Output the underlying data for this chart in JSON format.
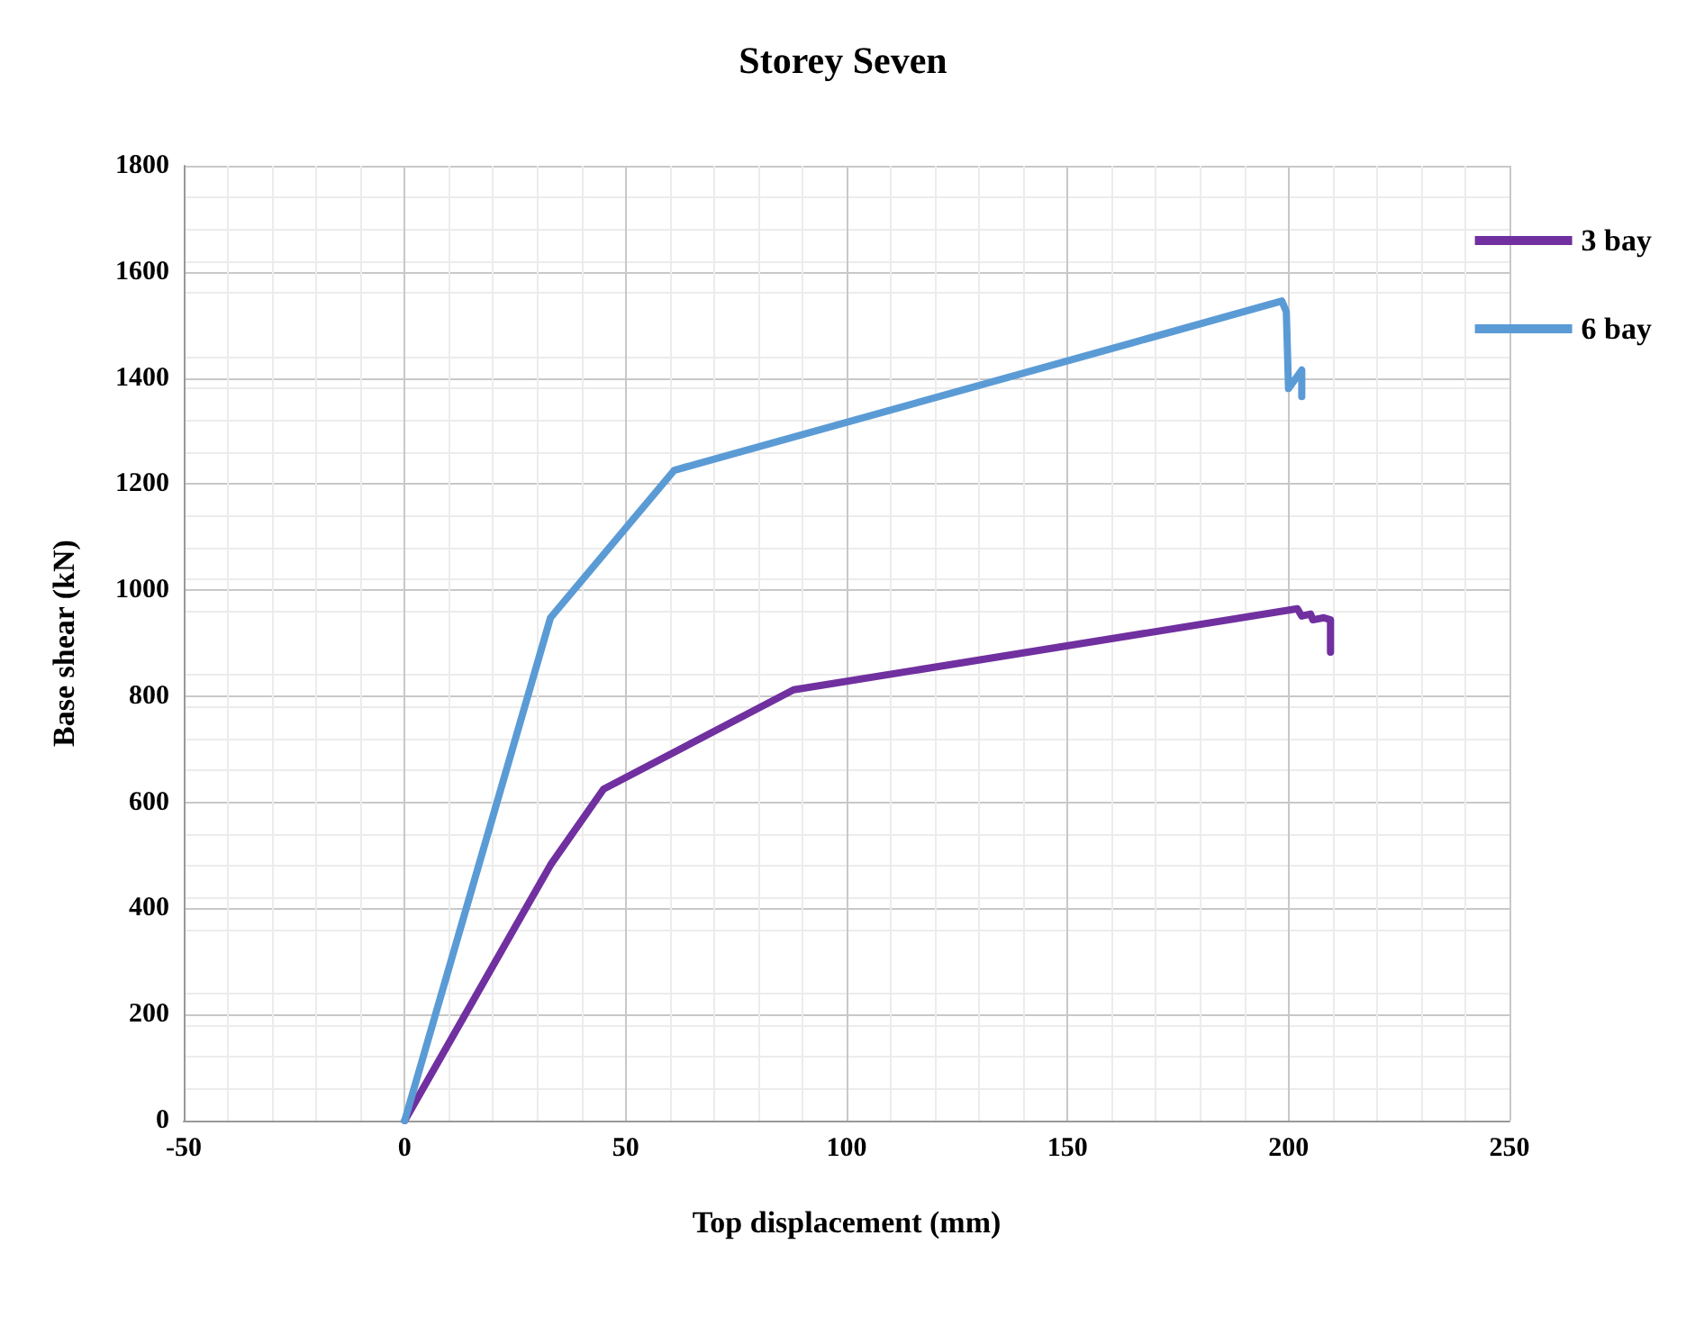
{
  "chart_data": {
    "type": "line",
    "title": "Storey Seven",
    "xlabel": "Top displacement (mm)",
    "ylabel": "Base shear (kN)",
    "xlim": [
      -50,
      250
    ],
    "xticks": [
      -50,
      0,
      50,
      100,
      150,
      200,
      250
    ],
    "ylim": [
      0,
      1800
    ],
    "yticks": [
      0,
      200,
      400,
      600,
      800,
      1000,
      1200,
      1400,
      1600,
      1800
    ],
    "grid": true,
    "legend": "right",
    "marker": "none",
    "line_style": "solid",
    "series": [
      {
        "name": "3 bay",
        "color": "#7030a0",
        "x": [
          0,
          33,
          45,
          88,
          202,
          203,
          205,
          205.5,
          208,
          209.5,
          209.5
        ],
        "values": [
          0,
          482,
          625,
          812,
          965,
          951,
          955,
          944,
          948,
          944,
          883
        ]
      },
      {
        "name": "6 bay",
        "color": "#5b9bd5",
        "x": [
          0,
          33,
          61,
          165,
          198.5,
          199.5,
          200,
          203,
          203
        ],
        "values": [
          0,
          948,
          1226,
          1467,
          1545,
          1525,
          1380,
          1415,
          1365
        ]
      }
    ]
  }
}
